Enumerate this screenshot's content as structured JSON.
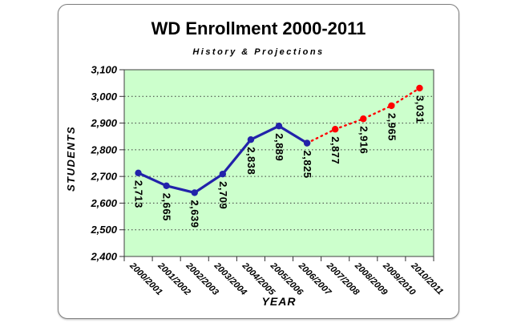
{
  "window": {
    "background_color": "#ffffff",
    "frame_border_color": "#7f7f7f"
  },
  "chart_data": {
    "type": "line",
    "title": "WD Enrollment 2000-2011",
    "subtitle": "History & Projections",
    "xlabel": "YEAR",
    "ylabel": "STUDENTS",
    "ylim": [
      2400,
      3100
    ],
    "ytick_step": 100,
    "y_ticks": [
      "2,400",
      "2,500",
      "2,600",
      "2,700",
      "2,800",
      "2,900",
      "3,000",
      "3,100"
    ],
    "categories": [
      "2000/2001",
      "2001/2002",
      "2002/2003",
      "2003/2004",
      "2004/2005",
      "2005/2006",
      "2006/2007",
      "2007/2008",
      "2008/2009",
      "2009/2010",
      "2010/2011"
    ],
    "values": [
      2713,
      2665,
      2639,
      2709,
      2838,
      2889,
      2825,
      2877,
      2916,
      2965,
      3031
    ],
    "point_labels": [
      "2,713",
      "2,665",
      "2,639",
      "2,709",
      "2,838",
      "2,889",
      "2,825",
      "2,877",
      "2,916",
      "2,965",
      "3,031"
    ],
    "series": [
      {
        "name": "History",
        "color": "#2222aa",
        "line_style": "solid",
        "from": 0,
        "to": 6
      },
      {
        "name": "Projections",
        "color": "#ff0000",
        "line_style": "dashed",
        "from": 6,
        "to": 10
      }
    ],
    "plot_background": "#ccffcc",
    "grid": "dotted-horizontal",
    "gridline_color": "#3a3a3a",
    "legend_position": "none"
  }
}
